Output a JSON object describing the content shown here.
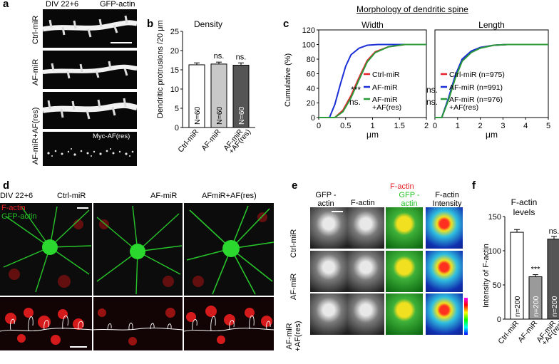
{
  "colors": {
    "ctrl": "#e8202a",
    "af": "#1a2fd6",
    "res": "#2b9a3a",
    "factin": "#e8202a",
    "gfp": "#24c424"
  },
  "panel_a": {
    "label": "a",
    "header_left": "DIV 22+6",
    "header_right": "GFP-actin",
    "row_labels": [
      "Ctrl-miR",
      "AF-miR",
      "AF-miR+AF(res)"
    ],
    "myc_label": "Myc-AF(res)"
  },
  "panel_b": {
    "label": "b",
    "title": "Density",
    "ylabel": "Dendritic protrusions /20 μm",
    "yticks": [
      "0",
      "5",
      "10",
      "15",
      "20",
      "25"
    ],
    "bars": [
      {
        "category": "Ctrl-miR",
        "n": "N=60",
        "sig": ""
      },
      {
        "category": "AF-miR",
        "n": "N=60",
        "sig": "ns."
      },
      {
        "category": "AF-miR +AF(res)",
        "n": "N=60",
        "sig": "ns."
      }
    ]
  },
  "panel_c": {
    "label": "c",
    "title": "Morphology of dendritic spine",
    "ylabel": "Cumulative (%)",
    "yticks": [
      "0",
      "20",
      "40",
      "60",
      "80",
      "100",
      "120"
    ],
    "width": {
      "title": "Width",
      "xlabel": "μm",
      "xticks": [
        "0",
        "0.5",
        "1",
        "1.5",
        "2"
      ],
      "legend": [
        "Ctrl-miR",
        "AF-miR",
        "AF-miR",
        "+AF(res)"
      ],
      "sig": [
        "***",
        "ns."
      ]
    },
    "length": {
      "title": "Length",
      "xlabel": "μm",
      "xticks": [
        "0",
        "1",
        "2",
        "3",
        "4",
        "5"
      ],
      "legend": [
        "Ctrl-miR (n=975)",
        "AF-miR (n=991)",
        "AF-miR (n=976)",
        "+AF(res)"
      ],
      "sig": [
        "ns.",
        "ns."
      ]
    }
  },
  "panel_d": {
    "label": "d",
    "header": "DIV 22+6",
    "ch1": "F-actin",
    "ch2": "GFP-actin",
    "col_labels": [
      "Ctrl-miR",
      "AF-miR",
      "AFmiR+AF(res)"
    ]
  },
  "panel_e": {
    "label": "e",
    "col_headers": [
      "GFP -actin",
      "F-actin",
      "F-actin",
      "GFP -actin",
      "F-actin Intensity"
    ],
    "row_labels": [
      "Ctrl-miR",
      "AF-miR",
      "AF-miR +AF(res)"
    ]
  },
  "panel_f": {
    "label": "f",
    "title": "F-actin levels",
    "ylabel": "Intensity of F-actin",
    "yticks": [
      "0",
      "50",
      "100",
      "150"
    ],
    "bars": [
      {
        "category": "Ctrl-miR",
        "n": "n=200",
        "sig": ""
      },
      {
        "category": "AF-miR",
        "n": "n=200",
        "sig": "***"
      },
      {
        "category": "AF-miR +AF(res)",
        "n": "n=200",
        "sig": "ns."
      }
    ]
  },
  "chart_data": [
    {
      "type": "bar",
      "title": "Density",
      "ylabel": "Dendritic protrusions /20 μm",
      "categories": [
        "Ctrl-miR",
        "AF-miR",
        "AF-miR +AF(res)"
      ],
      "values": [
        16.3,
        16.5,
        16.2
      ],
      "errors": [
        0.5,
        0.5,
        0.6
      ],
      "ylim": [
        0,
        25
      ]
    },
    {
      "type": "line",
      "title": "Width",
      "xlabel": "μm",
      "ylabel": "Cumulative (%)",
      "xlim": [
        0,
        2
      ],
      "ylim": [
        0,
        120
      ],
      "series": [
        {
          "name": "Ctrl-miR",
          "x": [
            0.3,
            0.45,
            0.6,
            0.75,
            0.9,
            1.05,
            1.3,
            1.6
          ],
          "y": [
            0,
            10,
            30,
            55,
            78,
            90,
            97,
            100
          ]
        },
        {
          "name": "AF-miR",
          "x": [
            0.2,
            0.3,
            0.4,
            0.5,
            0.6,
            0.75,
            0.9,
            1.1
          ],
          "y": [
            0,
            18,
            45,
            70,
            86,
            95,
            99,
            100
          ]
        },
        {
          "name": "AF-miR +AF(res)",
          "x": [
            0.3,
            0.45,
            0.6,
            0.75,
            0.9,
            1.05,
            1.3,
            1.6
          ],
          "y": [
            0,
            8,
            27,
            52,
            76,
            89,
            97,
            100
          ]
        }
      ]
    },
    {
      "type": "line",
      "title": "Length",
      "xlabel": "μm",
      "ylabel": "Cumulative (%)",
      "xlim": [
        0,
        5
      ],
      "ylim": [
        0,
        120
      ],
      "series": [
        {
          "name": "Ctrl-miR (n=975)",
          "x": [
            0.3,
            0.6,
            0.9,
            1.2,
            1.6,
            2.0,
            2.6,
            3.2
          ],
          "y": [
            0,
            25,
            55,
            78,
            90,
            96,
            99,
            100
          ]
        },
        {
          "name": "AF-miR (n=991)",
          "x": [
            0.3,
            0.6,
            0.9,
            1.2,
            1.6,
            2.0,
            2.6,
            3.2
          ],
          "y": [
            0,
            27,
            58,
            80,
            91,
            96,
            99,
            100
          ]
        },
        {
          "name": "AF-miR (n=976) +AF(res)",
          "x": [
            0.3,
            0.6,
            0.9,
            1.2,
            1.6,
            2.0,
            2.6,
            3.2
          ],
          "y": [
            0,
            24,
            54,
            77,
            89,
            95,
            99,
            100
          ]
        }
      ]
    },
    {
      "type": "bar",
      "title": "F-actin levels",
      "ylabel": "Intensity of F-actin",
      "categories": [
        "Ctrl-miR",
        "AF-miR",
        "AF-miR +AF(res)"
      ],
      "values": [
        127,
        62,
        117
      ],
      "errors": [
        4,
        3,
        4
      ],
      "ylim": [
        0,
        150
      ]
    }
  ]
}
